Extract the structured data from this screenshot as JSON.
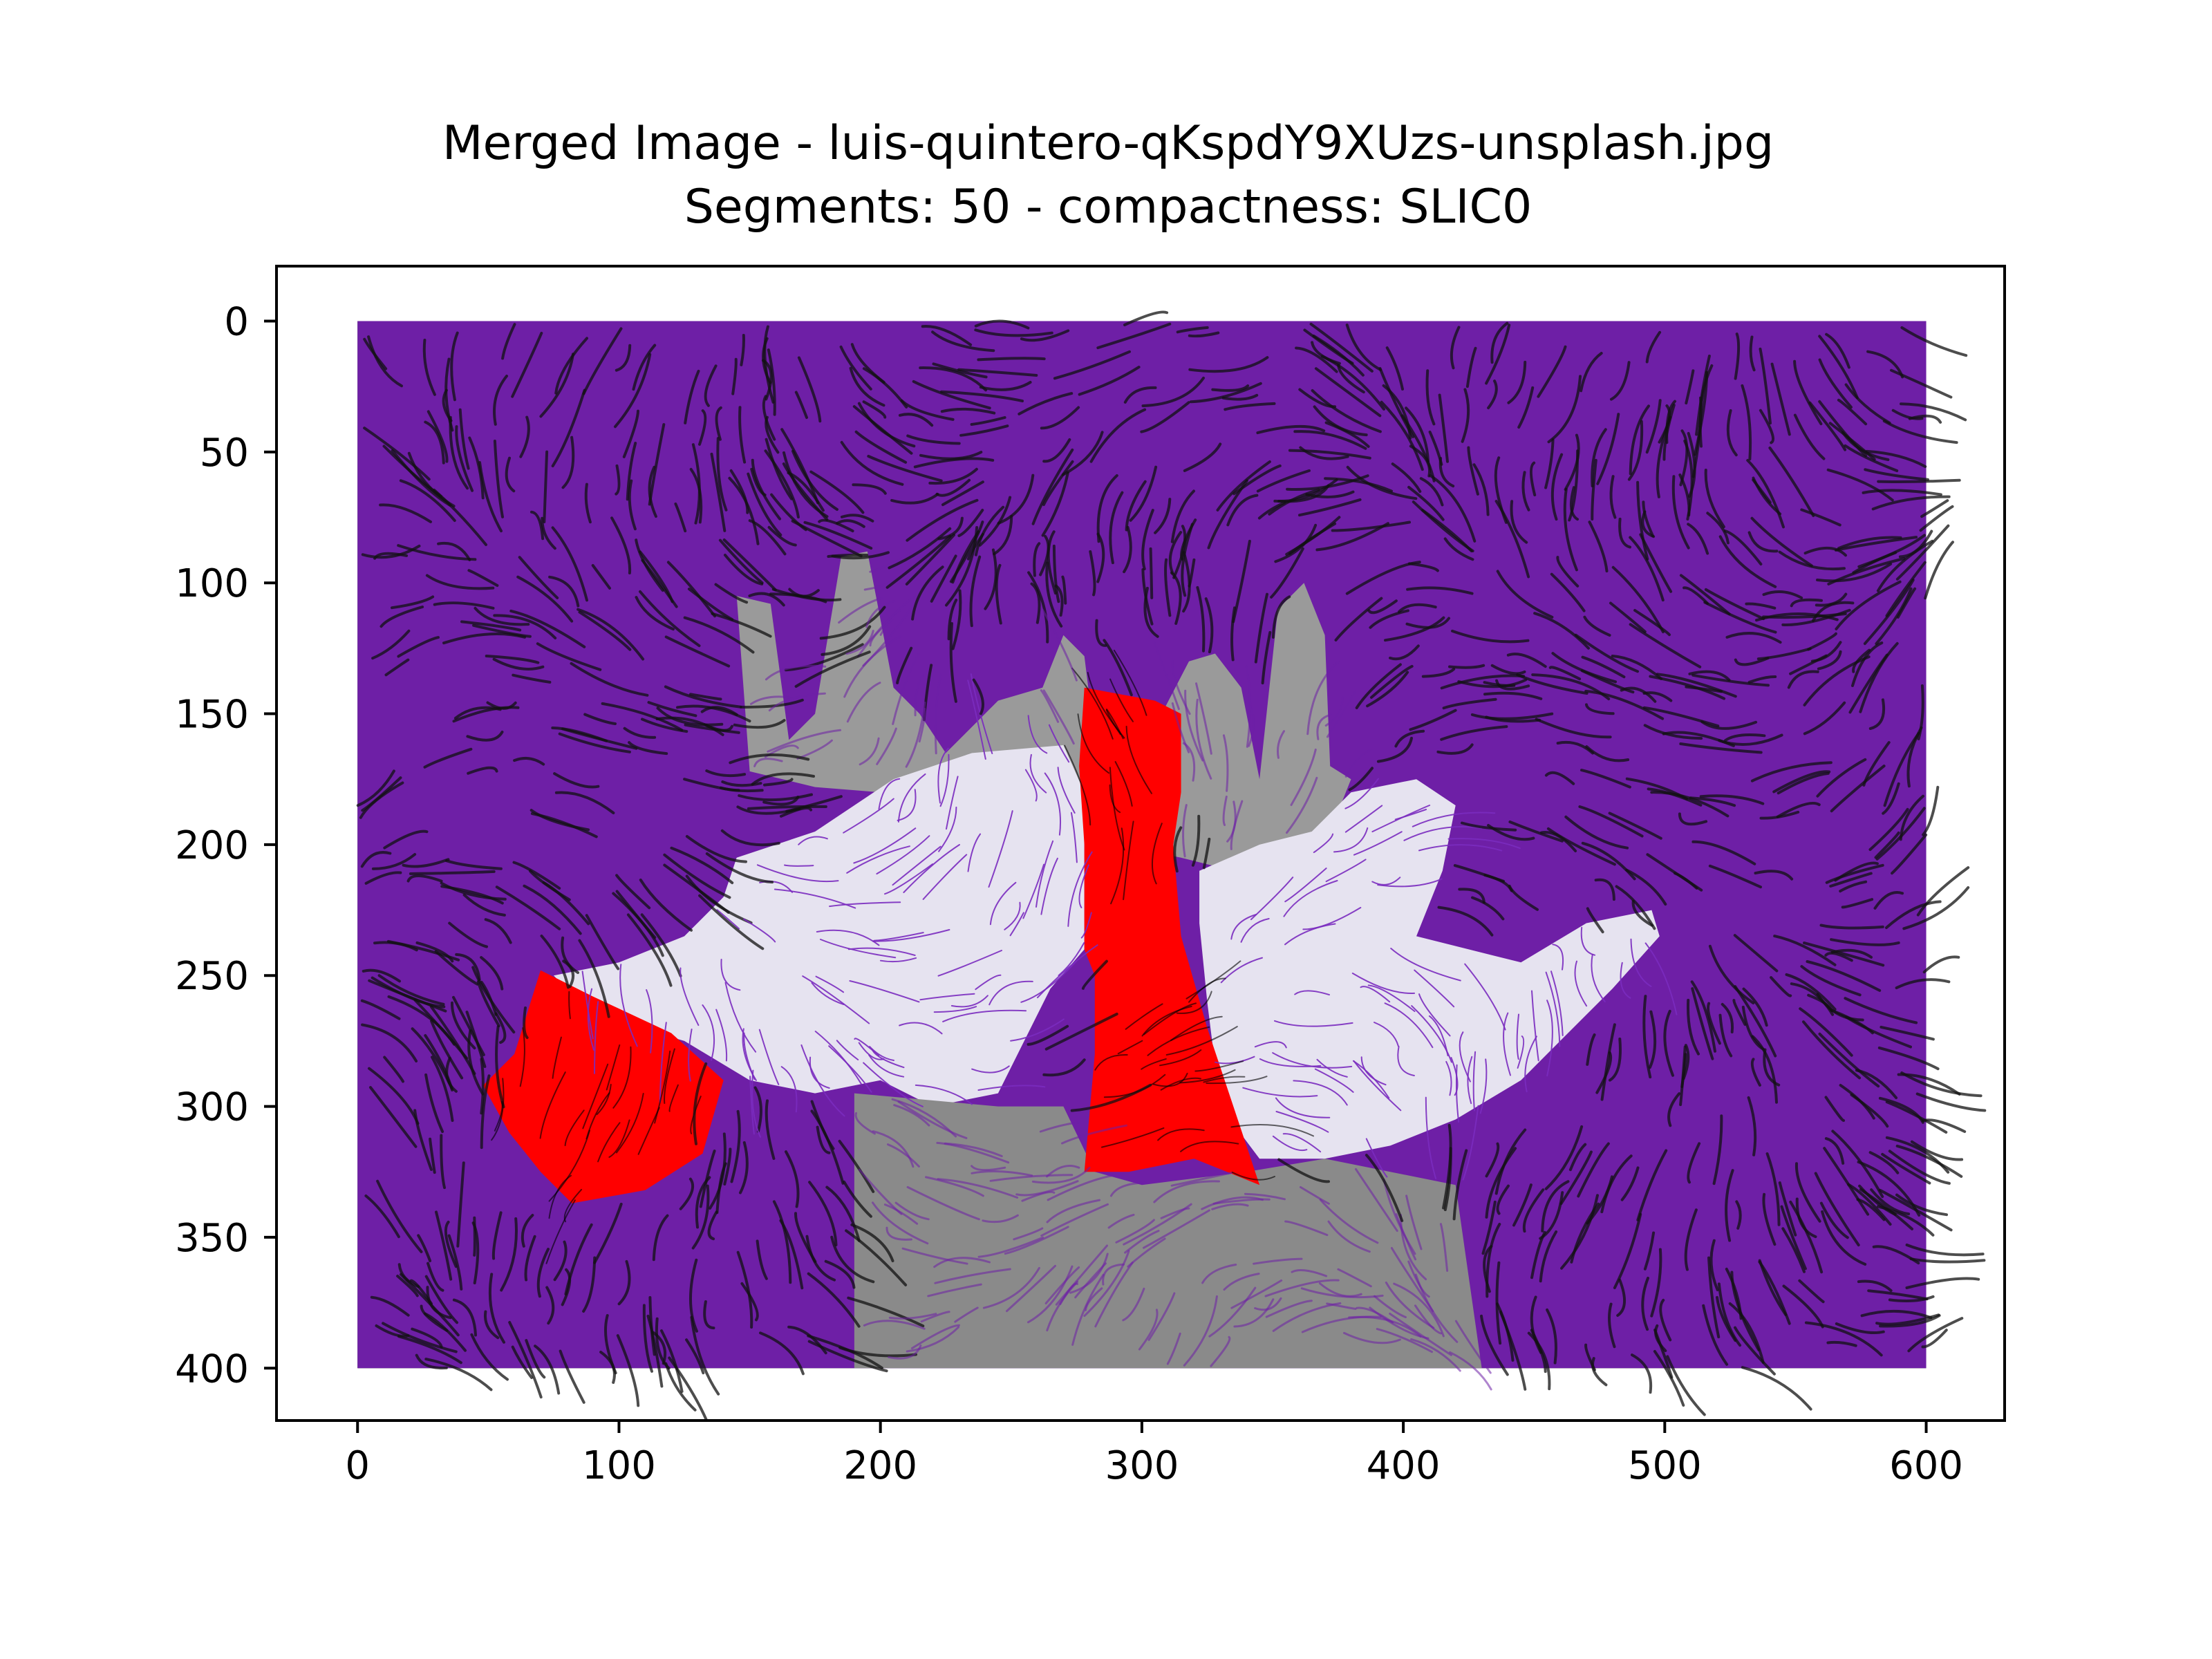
{
  "chart_data": {
    "type": "image",
    "title": "Merged Image - luis-quintero-qKspdY9XUzs-unsplash.jpg",
    "subtitle": "Segments: 50 - compactness: SLIC0",
    "xlabel": "",
    "ylabel": "",
    "xlim": [
      -31,
      630
    ],
    "ylim": [
      420,
      -21
    ],
    "y_inverted": true,
    "xticks": [
      0,
      100,
      200,
      300,
      400,
      500,
      600
    ],
    "yticks": [
      0,
      50,
      100,
      150,
      200,
      250,
      300,
      350,
      400
    ],
    "image_extent": {
      "x": [
        0,
        600
      ],
      "y": [
        0,
        400
      ]
    },
    "colors": {
      "background_dark": "#1f1f1f",
      "purple_segments": "#6e1fa6",
      "light_segments": "#e6e3f0",
      "gray_segments": "#9a9a9a",
      "highlight_segments": "#ff0000",
      "stroke_dark": "#111111",
      "stroke_light": "#7a2bbf"
    },
    "regions": [
      {
        "label": "background",
        "color": "#6e1fa6",
        "polygon": [
          [
            0,
            0
          ],
          [
            600,
            0
          ],
          [
            600,
            400
          ],
          [
            0,
            400
          ]
        ]
      },
      {
        "label": "gray-hand-fingers",
        "color": "#9a9a9a",
        "polygon": [
          [
            145,
            105
          ],
          [
            158,
            108
          ],
          [
            165,
            160
          ],
          [
            175,
            150
          ],
          [
            185,
            90
          ],
          [
            195,
            88
          ],
          [
            205,
            140
          ],
          [
            215,
            150
          ],
          [
            225,
            165
          ],
          [
            235,
            155
          ],
          [
            245,
            145
          ],
          [
            262,
            140
          ],
          [
            270,
            120
          ],
          [
            278,
            128
          ],
          [
            282,
            160
          ],
          [
            295,
            170
          ],
          [
            305,
            155
          ],
          [
            318,
            130
          ],
          [
            328,
            127
          ],
          [
            338,
            140
          ],
          [
            345,
            175
          ],
          [
            352,
            110
          ],
          [
            362,
            100
          ],
          [
            370,
            120
          ],
          [
            372,
            170
          ],
          [
            380,
            175
          ],
          [
            368,
            205
          ],
          [
            335,
            210
          ],
          [
            315,
            205
          ],
          [
            290,
            200
          ],
          [
            260,
            190
          ],
          [
            230,
            183
          ],
          [
            200,
            180
          ],
          [
            175,
            178
          ],
          [
            150,
            172
          ]
        ]
      },
      {
        "label": "light-palm-left",
        "color": "#e6e3f0",
        "polygon": [
          [
            145,
            205
          ],
          [
            175,
            195
          ],
          [
            205,
            175
          ],
          [
            235,
            165
          ],
          [
            270,
            162
          ],
          [
            278,
            180
          ],
          [
            278,
            240
          ],
          [
            265,
            255
          ],
          [
            245,
            295
          ],
          [
            220,
            300
          ],
          [
            200,
            290
          ],
          [
            175,
            295
          ],
          [
            150,
            290
          ],
          [
            125,
            275
          ],
          [
            90,
            265
          ],
          [
            75,
            250
          ],
          [
            100,
            245
          ],
          [
            125,
            235
          ],
          [
            140,
            220
          ]
        ]
      },
      {
        "label": "light-palm-right",
        "color": "#e6e3f0",
        "polygon": [
          [
            322,
            210
          ],
          [
            345,
            200
          ],
          [
            365,
            195
          ],
          [
            380,
            180
          ],
          [
            405,
            175
          ],
          [
            420,
            185
          ],
          [
            415,
            210
          ],
          [
            405,
            235
          ],
          [
            425,
            240
          ],
          [
            445,
            245
          ],
          [
            470,
            230
          ],
          [
            495,
            225
          ],
          [
            498,
            235
          ],
          [
            480,
            255
          ],
          [
            460,
            275
          ],
          [
            445,
            290
          ],
          [
            420,
            305
          ],
          [
            395,
            315
          ],
          [
            370,
            320
          ],
          [
            345,
            320
          ],
          [
            330,
            300
          ],
          [
            325,
            260
          ],
          [
            322,
            230
          ]
        ]
      },
      {
        "label": "gray-lower-middle",
        "color": "#8a8a8a",
        "polygon": [
          [
            190,
            295
          ],
          [
            245,
            300
          ],
          [
            270,
            300
          ],
          [
            282,
            325
          ],
          [
            300,
            330
          ],
          [
            340,
            325
          ],
          [
            370,
            320
          ],
          [
            420,
            330
          ],
          [
            430,
            400
          ],
          [
            190,
            400
          ]
        ]
      },
      {
        "label": "red-segment-left",
        "color": "#ff0000",
        "polygon": [
          [
            70,
            248
          ],
          [
            90,
            258
          ],
          [
            120,
            272
          ],
          [
            140,
            290
          ],
          [
            132,
            318
          ],
          [
            110,
            332
          ],
          [
            82,
            337
          ],
          [
            70,
            325
          ],
          [
            58,
            310
          ],
          [
            48,
            292
          ],
          [
            60,
            280
          ]
        ]
      },
      {
        "label": "red-segment-center",
        "color": "#ff0000",
        "polygon": [
          [
            278,
            140
          ],
          [
            305,
            145
          ],
          [
            315,
            150
          ],
          [
            315,
            180
          ],
          [
            312,
            200
          ],
          [
            315,
            235
          ],
          [
            325,
            270
          ],
          [
            335,
            300
          ],
          [
            345,
            330
          ],
          [
            320,
            320
          ],
          [
            295,
            325
          ],
          [
            278,
            325
          ],
          [
            282,
            280
          ],
          [
            282,
            250
          ],
          [
            278,
            240
          ],
          [
            278,
            200
          ],
          [
            276,
            170
          ]
        ]
      }
    ]
  }
}
